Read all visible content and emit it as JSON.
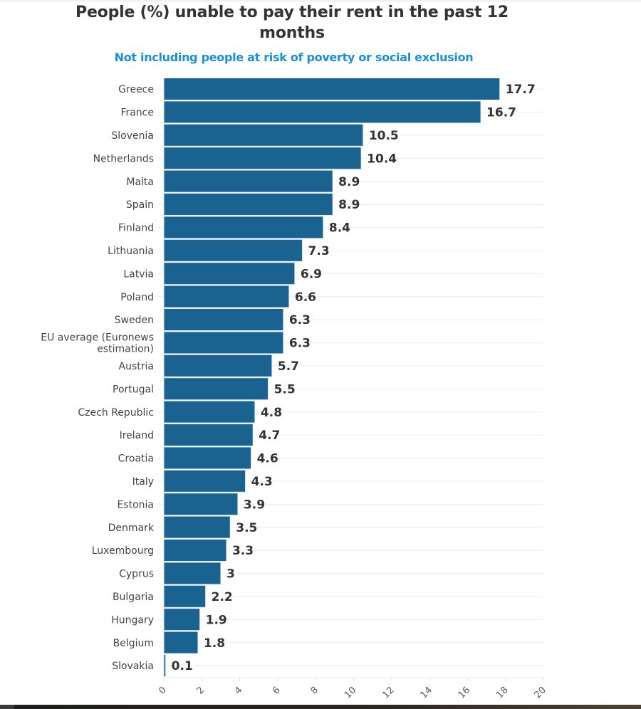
{
  "header": {
    "title": "People (%) unable to pay their rent in the past 12 months",
    "subtitle": "Not including people at risk of poverty or social exclusion"
  },
  "colors": {
    "bar": "#1a6391",
    "bar_stroke": "#e6eef5",
    "title": "#333333",
    "subtitle": "#1a8fd6",
    "grid": "#ececec"
  },
  "chart_data": {
    "type": "bar",
    "orientation": "horizontal",
    "title": "People (%) unable to pay their rent in the past 12 months",
    "subtitle": "Not including people at risk of poverty or social exclusion",
    "xlabel": "",
    "ylabel": "",
    "xlim": [
      0,
      20
    ],
    "x_ticks": [
      0,
      2,
      4,
      6,
      8,
      10,
      12,
      14,
      16,
      18,
      20
    ],
    "x_tick_labels": [
      "0",
      "2",
      "4",
      "6",
      "8",
      "10",
      "12",
      "14",
      "16",
      "18",
      "20"
    ],
    "grid": "horizontal lines per category",
    "legend": "none",
    "categories": [
      "Greece",
      "France",
      "Slovenia",
      "Netherlands",
      "Malta",
      "Spain",
      "Finland",
      "Lithuania",
      "Latvia",
      "Poland",
      "Sweden",
      "EU average (Euronews estimation)",
      "Austria",
      "Portugal",
      "Czech Republic",
      "Ireland",
      "Croatia",
      "Italy",
      "Estonia",
      "Denmark",
      "Luxembourg",
      "Cyprus",
      "Bulgaria",
      "Hungary",
      "Belgium",
      "Slovakia"
    ],
    "category_label_lines": [
      [
        "Greece"
      ],
      [
        "France"
      ],
      [
        "Slovenia"
      ],
      [
        "Netherlands"
      ],
      [
        "Malta"
      ],
      [
        "Spain"
      ],
      [
        "Finland"
      ],
      [
        "Lithuania"
      ],
      [
        "Latvia"
      ],
      [
        "Poland"
      ],
      [
        "Sweden"
      ],
      [
        "EU average (Euronews",
        "estimation)"
      ],
      [
        "Austria"
      ],
      [
        "Portugal"
      ],
      [
        "Czech Republic"
      ],
      [
        "Ireland"
      ],
      [
        "Croatia"
      ],
      [
        "Italy"
      ],
      [
        "Estonia"
      ],
      [
        "Denmark"
      ],
      [
        "Luxembourg"
      ],
      [
        "Cyprus"
      ],
      [
        "Bulgaria"
      ],
      [
        "Hungary"
      ],
      [
        "Belgium"
      ],
      [
        "Slovakia"
      ]
    ],
    "values": [
      17.7,
      16.7,
      10.5,
      10.4,
      8.9,
      8.9,
      8.4,
      7.3,
      6.9,
      6.6,
      6.3,
      6.3,
      5.7,
      5.5,
      4.8,
      4.7,
      4.6,
      4.3,
      3.9,
      3.5,
      3.3,
      3,
      2.2,
      1.9,
      1.8,
      0.1
    ],
    "value_labels": [
      "17.7",
      "16.7",
      "10.5",
      "10.4",
      "8.9",
      "8.9",
      "8.4",
      "7.3",
      "6.9",
      "6.6",
      "6.3",
      "6.3",
      "5.7",
      "5.5",
      "4.8",
      "4.7",
      "4.6",
      "4.3",
      "3.9",
      "3.5",
      "3.3",
      "3",
      "2.2",
      "1.9",
      "1.8",
      "0.1"
    ]
  }
}
